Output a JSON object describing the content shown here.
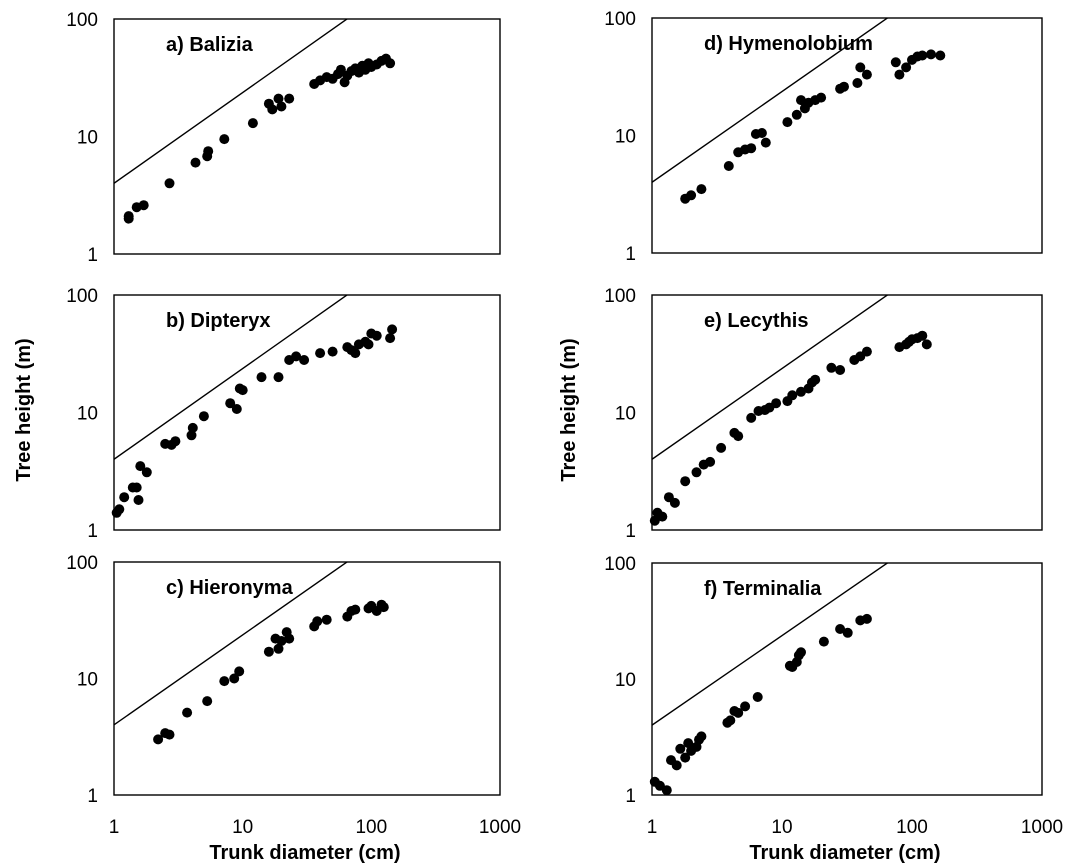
{
  "figure": {
    "xlabel": "Trunk diameter (cm)",
    "ylabel": "Tree height (m)"
  },
  "chart_data": [
    {
      "type": "scatter",
      "title": "a) Balizia",
      "xlabel": "",
      "ylabel": "",
      "xscale": "log",
      "yscale": "log",
      "xlim": [
        1,
        1000
      ],
      "ylim": [
        1,
        100
      ],
      "x_ticks": [
        "1",
        "10",
        "100",
        "1000"
      ],
      "y_ticks": [
        "1",
        "10",
        "100"
      ],
      "grid": false,
      "reference_line": [
        [
          1,
          4
        ],
        [
          100,
          140
        ]
      ],
      "x": [
        1.3,
        1.3,
        1.5,
        1.7,
        2.7,
        4.3,
        5.3,
        5.4,
        7.2,
        12,
        16,
        17,
        19,
        20,
        23,
        36,
        40,
        45,
        50,
        55,
        58,
        62,
        65,
        70,
        75,
        80,
        85,
        90,
        95,
        100,
        110,
        120,
        130,
        140
      ],
      "y": [
        2.0,
        2.1,
        2.5,
        2.6,
        4.0,
        6.0,
        6.8,
        7.5,
        9.5,
        13,
        19,
        17,
        21,
        18,
        21,
        28,
        30,
        32,
        31,
        34,
        37,
        29,
        33,
        36,
        38,
        35,
        40,
        37,
        42,
        39,
        41,
        44,
        46,
        42
      ]
    },
    {
      "type": "scatter",
      "title": "b) Dipteryx",
      "xlabel": "",
      "ylabel": "",
      "xscale": "log",
      "yscale": "log",
      "xlim": [
        1,
        1000
      ],
      "ylim": [
        1,
        100
      ],
      "x_ticks": [
        "1",
        "10",
        "100",
        "1000"
      ],
      "y_ticks": [
        "1",
        "10",
        "100"
      ],
      "grid": false,
      "reference_line": [
        [
          1,
          4
        ],
        [
          100,
          140
        ]
      ],
      "x": [
        1.05,
        1.1,
        1.2,
        1.4,
        1.5,
        1.55,
        1.6,
        1.8,
        2.5,
        2.8,
        3.0,
        4.0,
        4.1,
        5.0,
        8.0,
        9.0,
        9.5,
        10,
        14,
        19,
        23,
        26,
        30,
        40,
        50,
        65,
        70,
        75,
        80,
        90,
        95,
        100,
        110,
        140,
        145
      ],
      "y": [
        1.4,
        1.5,
        1.9,
        2.3,
        2.3,
        1.8,
        3.5,
        3.1,
        5.4,
        5.3,
        5.7,
        6.4,
        7.4,
        9.3,
        12,
        10.7,
        16,
        15.5,
        20,
        20,
        28,
        30,
        28,
        32,
        33,
        36,
        34,
        32,
        38,
        40,
        38,
        47,
        45,
        43,
        51
      ]
    },
    {
      "type": "scatter",
      "title": "c) Hieronyma",
      "xlabel": "",
      "ylabel": "",
      "xscale": "log",
      "yscale": "log",
      "xlim": [
        1,
        1000
      ],
      "ylim": [
        1,
        100
      ],
      "x_ticks": [
        "1",
        "10",
        "100",
        "1000"
      ],
      "y_ticks": [
        "1",
        "10",
        "100"
      ],
      "grid": false,
      "reference_line": [
        [
          1,
          4
        ],
        [
          100,
          140
        ]
      ],
      "x": [
        2.2,
        2.5,
        2.7,
        3.7,
        5.3,
        7.2,
        8.6,
        9.4,
        16,
        18,
        19,
        20,
        22,
        23,
        36,
        38,
        45,
        65,
        70,
        75,
        95,
        100,
        110,
        120,
        125
      ],
      "y": [
        3.0,
        3.4,
        3.3,
        5.1,
        6.4,
        9.5,
        10,
        11.5,
        17,
        22,
        18,
        21,
        25,
        22,
        28,
        31,
        32,
        34,
        38,
        39,
        40,
        42,
        38,
        43,
        41
      ]
    },
    {
      "type": "scatter",
      "title": "d) Hymenolobium",
      "xlabel": "",
      "ylabel": "",
      "xscale": "log",
      "yscale": "log",
      "xlim": [
        1,
        1000
      ],
      "ylim": [
        1,
        100
      ],
      "x_ticks": [
        "1",
        "10",
        "100",
        "1000"
      ],
      "y_ticks": [
        "1",
        "10",
        "100"
      ],
      "grid": false,
      "reference_line": [
        [
          1,
          4
        ],
        [
          100,
          140
        ]
      ],
      "x": [
        1.8,
        2.0,
        2.4,
        3.9,
        4.6,
        5.2,
        5.8,
        6.3,
        7.0,
        7.5,
        11,
        13,
        14,
        15,
        16,
        18,
        20,
        28,
        30,
        38,
        40,
        45,
        75,
        80,
        90,
        100,
        110,
        120,
        140,
        165
      ],
      "y": [
        2.9,
        3.1,
        3.5,
        5.5,
        7.2,
        7.6,
        7.8,
        10.3,
        10.5,
        8.7,
        13,
        15,
        20,
        17,
        19,
        20,
        21,
        25,
        26,
        28,
        38,
        33,
        42,
        33,
        38,
        44,
        47,
        48,
        49,
        48
      ]
    },
    {
      "type": "scatter",
      "title": "e) Lecythis",
      "xlabel": "",
      "ylabel": "",
      "xscale": "log",
      "yscale": "log",
      "xlim": [
        1,
        1000
      ],
      "ylim": [
        1,
        100
      ],
      "x_ticks": [
        "1",
        "10",
        "100",
        "1000"
      ],
      "y_ticks": [
        "1",
        "10",
        "100"
      ],
      "grid": false,
      "reference_line": [
        [
          1,
          4
        ],
        [
          100,
          140
        ]
      ],
      "x": [
        1.05,
        1.1,
        1.2,
        1.35,
        1.5,
        1.8,
        2.2,
        2.5,
        2.8,
        3.4,
        4.3,
        4.6,
        5.8,
        6.6,
        7.4,
        8.0,
        9.0,
        11,
        12,
        14,
        16,
        17,
        18,
        24,
        28,
        36,
        40,
        45,
        80,
        90,
        95,
        100,
        110,
        120,
        130
      ],
      "y": [
        1.2,
        1.4,
        1.3,
        1.9,
        1.7,
        2.6,
        3.1,
        3.6,
        3.8,
        5.0,
        6.7,
        6.3,
        9.0,
        10.3,
        10.5,
        11,
        12,
        12.5,
        14,
        15,
        16,
        18,
        19,
        24,
        23,
        28,
        30,
        33,
        36,
        38,
        40,
        42,
        43,
        45,
        38
      ]
    },
    {
      "type": "scatter",
      "title": "f) Terminalia",
      "xlabel": "",
      "ylabel": "",
      "xscale": "log",
      "yscale": "log",
      "xlim": [
        1,
        1000
      ],
      "ylim": [
        1,
        100
      ],
      "x_ticks": [
        "1",
        "10",
        "100",
        "1000"
      ],
      "y_ticks": [
        "1",
        "10",
        "100"
      ],
      "grid": false,
      "reference_line": [
        [
          1,
          4
        ],
        [
          100,
          140
        ]
      ],
      "x": [
        1.05,
        1.15,
        1.3,
        1.4,
        1.55,
        1.65,
        1.8,
        1.9,
        2.0,
        2.2,
        2.3,
        2.4,
        3.8,
        4.0,
        4.3,
        4.6,
        5.2,
        6.5,
        11.5,
        12,
        13,
        13.5,
        14,
        21,
        28,
        32,
        40,
        45
      ],
      "y": [
        1.3,
        1.2,
        1.1,
        2.0,
        1.8,
        2.5,
        2.1,
        2.8,
        2.4,
        2.6,
        3.0,
        3.2,
        4.2,
        4.4,
        5.3,
        5.1,
        5.8,
        7.0,
        13,
        12.7,
        14,
        16,
        17,
        21,
        27,
        25,
        32,
        33
      ]
    }
  ]
}
